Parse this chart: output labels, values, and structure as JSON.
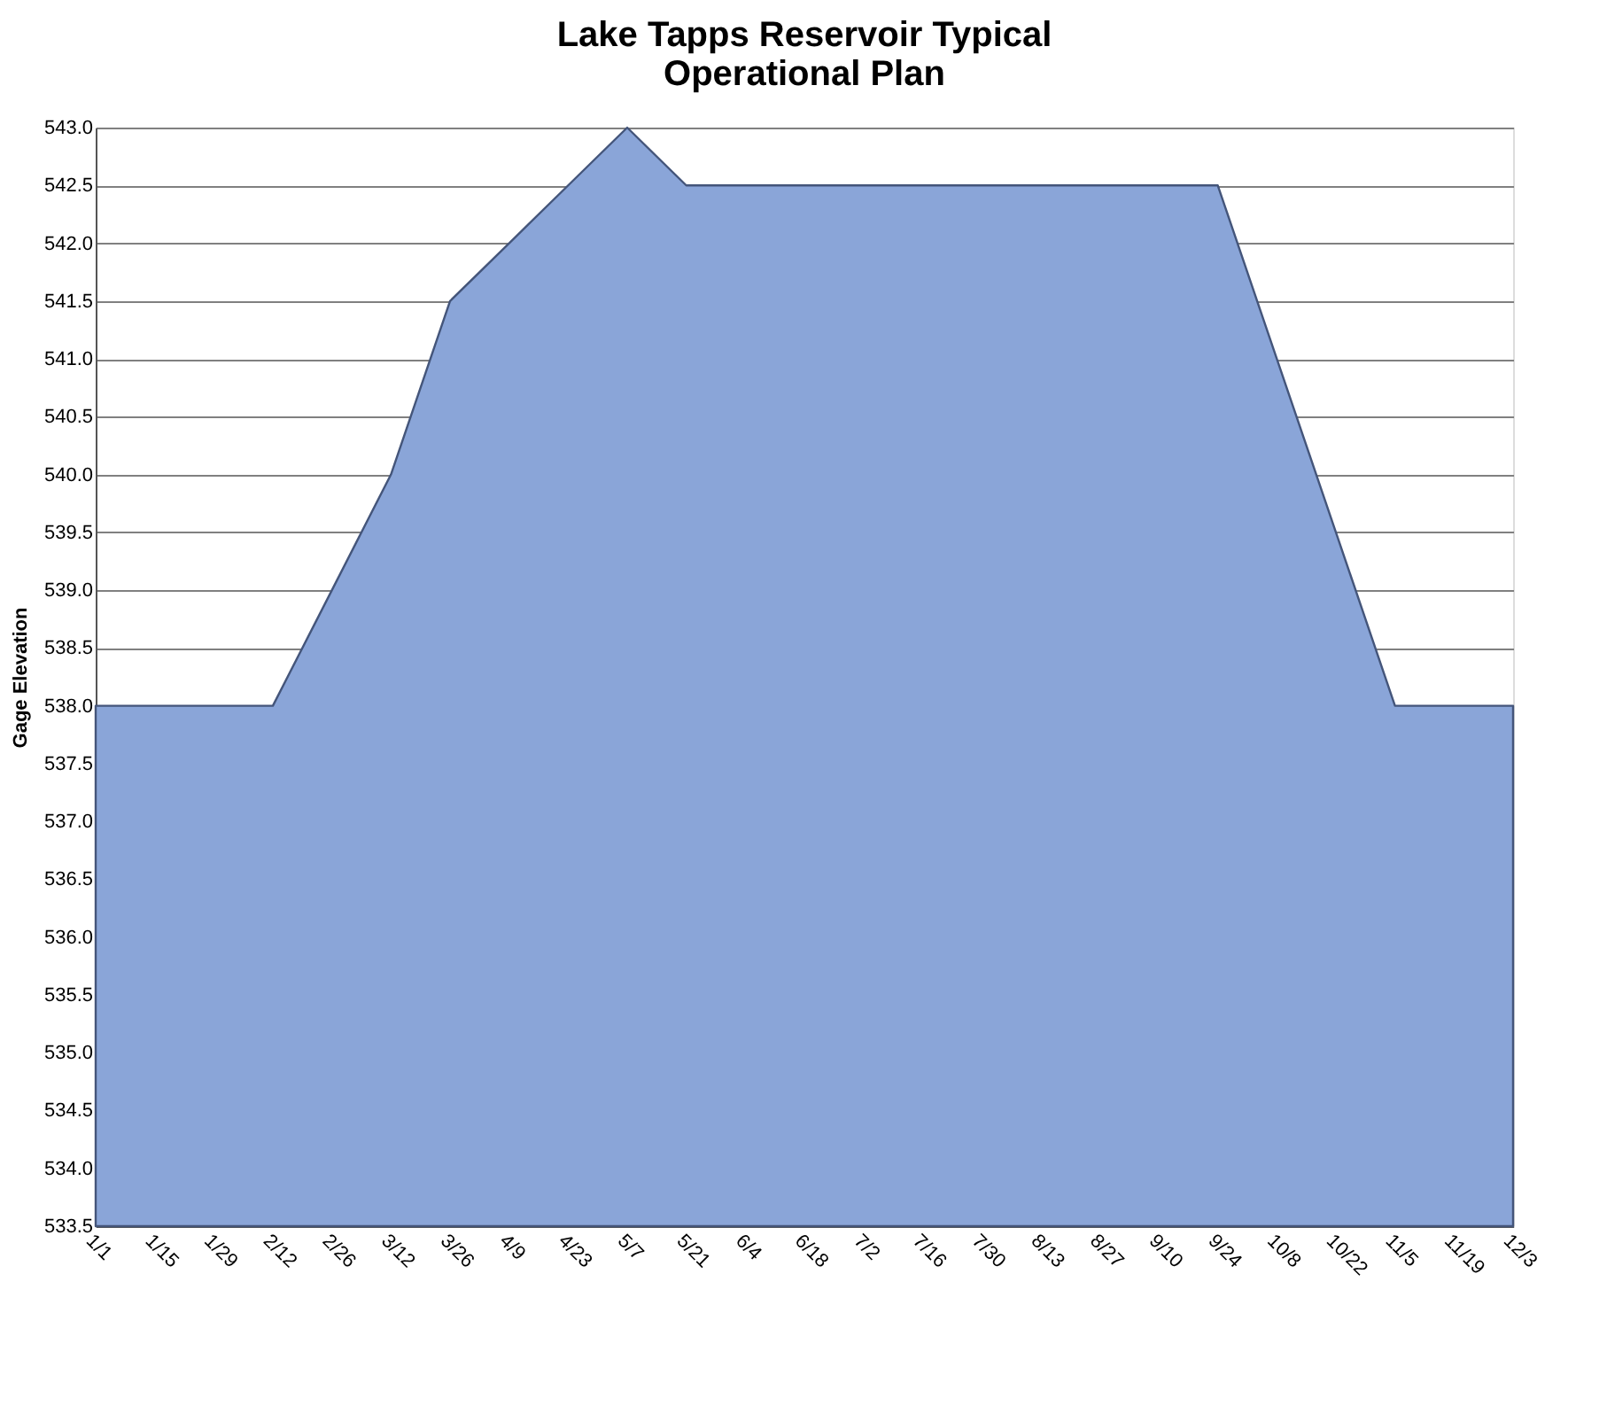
{
  "chart_data": {
    "type": "area",
    "title": "Lake Tapps Reservoir Typical\nOperational Plan",
    "ylabel": "Gage Elevation",
    "categories": [
      "1/1",
      "1/15",
      "1/29",
      "2/12",
      "2/26",
      "3/12",
      "3/26",
      "4/9",
      "4/23",
      "5/7",
      "5/21",
      "6/4",
      "6/18",
      "7/2",
      "7/16",
      "7/30",
      "8/13",
      "8/27",
      "9/10",
      "9/24",
      "10/8",
      "10/22",
      "11/5",
      "11/19",
      "12/3"
    ],
    "series": [
      {
        "color": "#8aa5d8",
        "values": [
          538.0,
          538.0,
          538.0,
          538.0,
          539.0,
          540.0,
          541.5,
          542.0,
          542.5,
          543.0,
          542.5,
          542.5,
          542.5,
          542.5,
          542.5,
          542.5,
          542.5,
          542.5,
          542.5,
          542.5,
          541.0,
          539.5,
          538.0,
          538.0,
          538.0
        ]
      }
    ],
    "ylim": [
      533.5,
      543.0
    ],
    "yticks": [
      533.5,
      {
        "value": 534,
        "label": "534.0"
      },
      534.5,
      {
        "value": 535,
        "label": "535.0"
      },
      535.5,
      {
        "value": 536,
        "label": "536.0"
      },
      536.5,
      {
        "value": 537,
        "label": "537.0"
      },
      537.5,
      {
        "value": 538,
        "label": "538.0"
      },
      538.5,
      {
        "value": 539,
        "label": "539.0"
      },
      539.5,
      {
        "value": 540,
        "label": "540.0"
      },
      540.5,
      {
        "value": 541,
        "label": "541.0"
      },
      541.5,
      {
        "value": 542,
        "label": "542.0"
      },
      542.5,
      {
        "value": 543,
        "label": "543.0"
      }
    ],
    "grid": "y"
  }
}
